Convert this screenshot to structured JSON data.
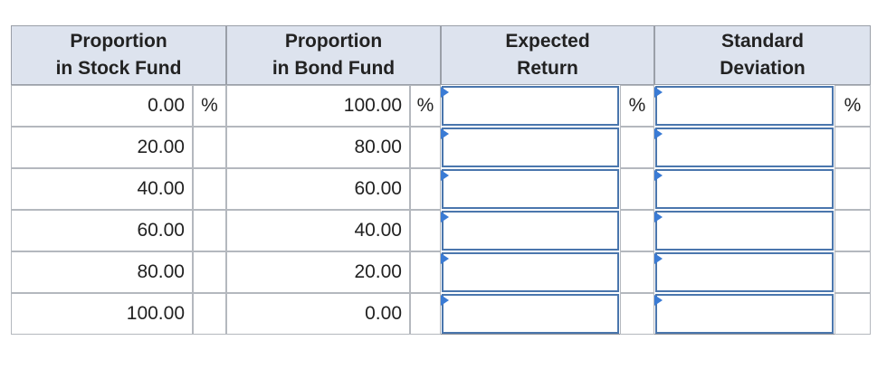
{
  "table": {
    "headers": [
      [
        "Proportion",
        "in Stock Fund"
      ],
      [
        "Proportion",
        "in Bond Fund"
      ],
      [
        "Expected",
        "Return"
      ],
      [
        "Standard",
        "Deviation"
      ]
    ],
    "rows": [
      {
        "stock": "0.00",
        "bond": "100.00",
        "units": [
          "%",
          "%",
          "%",
          "%"
        ]
      },
      {
        "stock": "20.00",
        "bond": "80.00"
      },
      {
        "stock": "40.00",
        "bond": "60.00"
      },
      {
        "stock": "60.00",
        "bond": "40.00"
      },
      {
        "stock": "80.00",
        "bond": "20.00"
      },
      {
        "stock": "100.00",
        "bond": "0.00"
      }
    ]
  }
}
